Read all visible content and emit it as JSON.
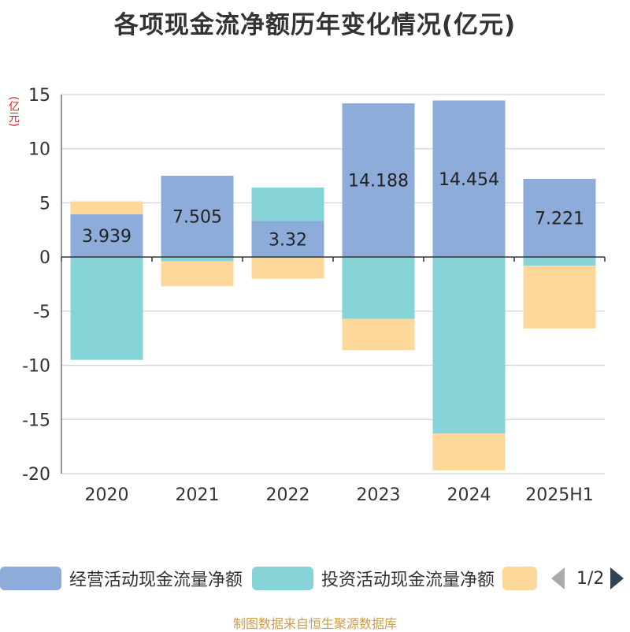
{
  "title": "各项现金流净额历年变化情况(亿元)",
  "unit_label": "(亿元)",
  "source": "制图数据来自恒生聚源数据库",
  "legend": {
    "items": [
      {
        "label": "经营活动现金流量净额",
        "color": "#8eacd9"
      },
      {
        "label": "投资活动现金流量净额",
        "color": "#87d4d8"
      },
      {
        "label": "",
        "color": "#fdd89a"
      }
    ],
    "page": "1/2"
  },
  "chart_data": {
    "type": "bar",
    "stacked": true,
    "categories": [
      "2020",
      "2021",
      "2022",
      "2023",
      "2024",
      "2025H1"
    ],
    "ylim": [
      -20,
      15
    ],
    "yticks": [
      15,
      10,
      5,
      0,
      -5,
      -10,
      -15,
      -20
    ],
    "grid": true,
    "series": [
      {
        "name": "经营活动现金流量净额",
        "color": "#8eacd9",
        "values": [
          3.939,
          7.505,
          3.32,
          14.188,
          14.454,
          7.221
        ],
        "labels": [
          "3.939",
          "7.505",
          "3.32",
          "14.188",
          "14.454",
          "7.221"
        ]
      },
      {
        "name": "投资活动现金流量净额",
        "color": "#87d4d8",
        "values": [
          -9.5,
          -0.4,
          3.1,
          -5.7,
          -16.3,
          -0.8
        ]
      },
      {
        "color": "#fdd89a",
        "values": [
          1.2,
          -2.3,
          -2.0,
          -2.9,
          -3.4,
          -5.8
        ]
      }
    ]
  }
}
